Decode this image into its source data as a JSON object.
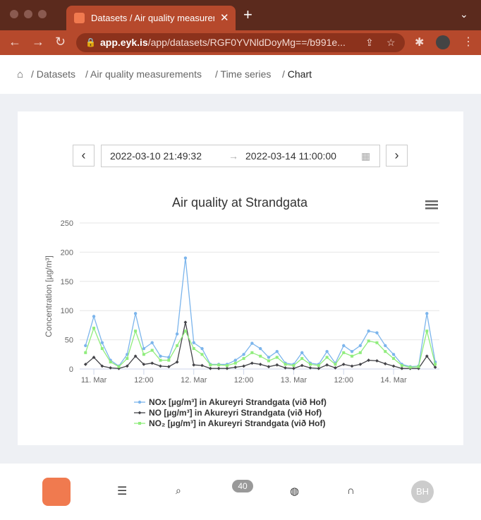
{
  "browser": {
    "tab_title": "Datasets / Air quality measurem",
    "url_host": "app.eyk.is",
    "url_path": "/app/datasets/RGF0YVNldDoyMg==/b991e..."
  },
  "breadcrumbs": [
    "Datasets",
    "Air quality measurements",
    "Time series",
    "Chart"
  ],
  "date_range": {
    "start": "2022-03-10 21:49:32",
    "end": "2022-03-14 11:00:00"
  },
  "nav": {
    "badge": 40,
    "avatar": "BH"
  },
  "chart_data": {
    "type": "line",
    "title": "Air quality at Strandgata",
    "y_label": "Concentration [µg/m³]",
    "x": [
      "2022-03-10 22:00",
      "2022-03-11 00:00",
      "2022-03-11 02:00",
      "2022-03-11 04:00",
      "2022-03-11 06:00",
      "2022-03-11 08:00",
      "2022-03-11 10:00",
      "2022-03-11 12:00",
      "2022-03-11 14:00",
      "2022-03-11 16:00",
      "2022-03-11 18:00",
      "2022-03-11 20:00",
      "2022-03-11 22:00",
      "2022-03-12 00:00",
      "2022-03-12 02:00",
      "2022-03-12 04:00",
      "2022-03-12 06:00",
      "2022-03-12 08:00",
      "2022-03-12 10:00",
      "2022-03-12 12:00",
      "2022-03-12 14:00",
      "2022-03-12 16:00",
      "2022-03-12 18:00",
      "2022-03-12 20:00",
      "2022-03-12 22:00",
      "2022-03-13 00:00",
      "2022-03-13 02:00",
      "2022-03-13 04:00",
      "2022-03-13 06:00",
      "2022-03-13 08:00",
      "2022-03-13 10:00",
      "2022-03-13 12:00",
      "2022-03-13 14:00",
      "2022-03-13 16:00",
      "2022-03-13 18:00",
      "2022-03-13 20:00",
      "2022-03-13 22:00",
      "2022-03-14 00:00",
      "2022-03-14 02:00",
      "2022-03-14 04:00",
      "2022-03-14 06:00",
      "2022-03-14 08:00",
      "2022-03-14 10:00"
    ],
    "series": [
      {
        "name": "NOx [µg/m³] in Akureyri Strandgata (við Hof)",
        "color": "#7cb5ec",
        "marker": "circle",
        "values": [
          40,
          90,
          45,
          15,
          5,
          25,
          95,
          35,
          45,
          22,
          20,
          60,
          190,
          45,
          35,
          8,
          8,
          8,
          15,
          25,
          44,
          35,
          20,
          30,
          10,
          8,
          28,
          10,
          8,
          30,
          10,
          40,
          30,
          40,
          65,
          62,
          40,
          25,
          8,
          4,
          5,
          95,
          12
        ]
      },
      {
        "name": "NO [µg/m³] in Akureyri Strandgata (við Hof)",
        "color": "#434348",
        "marker": "diamond",
        "values": [
          8,
          20,
          5,
          2,
          1,
          5,
          22,
          8,
          10,
          5,
          4,
          12,
          80,
          7,
          6,
          1,
          1,
          1,
          3,
          5,
          10,
          8,
          4,
          7,
          2,
          1,
          6,
          2,
          1,
          7,
          2,
          8,
          5,
          8,
          15,
          14,
          9,
          5,
          1,
          1,
          1,
          22,
          3
        ]
      },
      {
        "name": "NO₂ [µg/m³] in Akureyri Strandgata (við Hof)",
        "color": "#90ed7d",
        "marker": "square",
        "values": [
          28,
          70,
          35,
          12,
          4,
          18,
          65,
          25,
          32,
          15,
          15,
          40,
          65,
          35,
          25,
          7,
          7,
          6,
          10,
          18,
          28,
          22,
          14,
          20,
          8,
          6,
          18,
          8,
          6,
          20,
          8,
          28,
          22,
          28,
          48,
          45,
          30,
          18,
          6,
          3,
          4,
          65,
          8
        ]
      }
    ],
    "xlim": [
      "2022-03-10 20:36",
      "2022-03-14 11:00"
    ],
    "xticks": [
      {
        "value": "2022-03-11 00:00",
        "label": "11. Mar"
      },
      {
        "value": "2022-03-11 12:00",
        "label": "12:00"
      },
      {
        "value": "2022-03-12 00:00",
        "label": "12. Mar"
      },
      {
        "value": "2022-03-12 12:00",
        "label": "12:00"
      },
      {
        "value": "2022-03-13 00:00",
        "label": "13. Mar"
      },
      {
        "value": "2022-03-13 12:00",
        "label": "12:00"
      },
      {
        "value": "2022-03-14 00:00",
        "label": "14. Mar"
      }
    ],
    "ylim": [
      0,
      250
    ],
    "yticks": [
      0,
      50,
      100,
      150,
      200,
      250
    ],
    "grid": true
  }
}
